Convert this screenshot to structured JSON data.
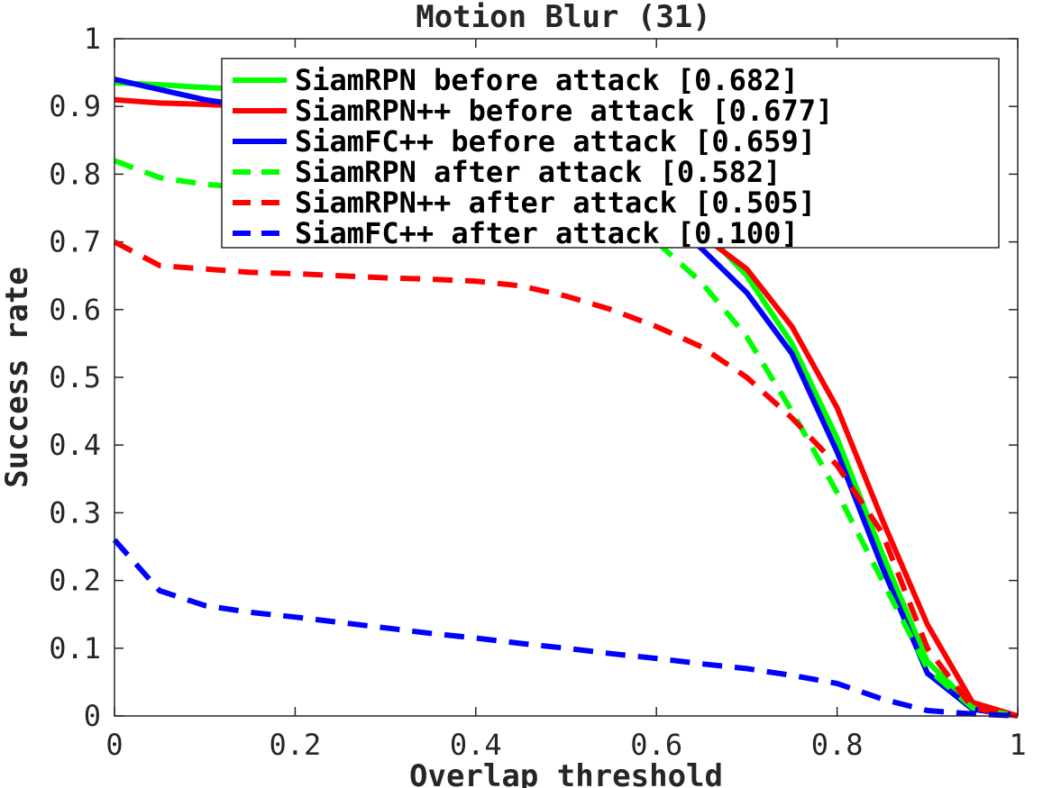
{
  "chart_data": {
    "type": "line",
    "title": "Motion Blur (31)",
    "xlabel": "Overlap threshold",
    "ylabel": "Success rate",
    "xlim": [
      0,
      1
    ],
    "ylim": [
      0,
      1
    ],
    "xticks": [
      "0",
      "0.2",
      "0.4",
      "0.6",
      "0.8",
      "1"
    ],
    "yticks": [
      "0",
      "0.1",
      "0.2",
      "0.3",
      "0.4",
      "0.5",
      "0.6",
      "0.7",
      "0.8",
      "0.9",
      "1"
    ],
    "legend_position": "top-right",
    "x": [
      0,
      0.05,
      0.1,
      0.15,
      0.2,
      0.25,
      0.3,
      0.35,
      0.4,
      0.45,
      0.5,
      0.55,
      0.6,
      0.65,
      0.7,
      0.75,
      0.8,
      0.85,
      0.9,
      0.95,
      1.0
    ],
    "series": [
      {
        "name": "SiamRPN before attack [0.682]",
        "color": "#00ff00",
        "style": "solid",
        "values": [
          0.935,
          0.932,
          0.928,
          0.925,
          0.92,
          0.915,
          0.91,
          0.905,
          0.9,
          0.89,
          0.87,
          0.83,
          0.78,
          0.72,
          0.65,
          0.55,
          0.41,
          0.24,
          0.08,
          0.015,
          0.0
        ]
      },
      {
        "name": "SiamRPN++ before attack [0.677]",
        "color": "#ff0000",
        "style": "solid",
        "values": [
          0.91,
          0.905,
          0.903,
          0.9,
          0.895,
          0.89,
          0.885,
          0.88,
          0.87,
          0.86,
          0.84,
          0.8,
          0.76,
          0.71,
          0.66,
          0.575,
          0.455,
          0.29,
          0.135,
          0.02,
          0.0
        ]
      },
      {
        "name": "SiamFC++ before attack [0.659]",
        "color": "#0000ff",
        "style": "solid",
        "values": [
          0.94,
          0.925,
          0.91,
          0.9,
          0.89,
          0.88,
          0.87,
          0.86,
          0.85,
          0.84,
          0.82,
          0.79,
          0.75,
          0.69,
          0.625,
          0.535,
          0.39,
          0.22,
          0.063,
          0.01,
          0.0
        ]
      },
      {
        "name": "SiamRPN after attack [0.582]",
        "color": "#00ff00",
        "style": "dashed",
        "values": [
          0.82,
          0.795,
          0.785,
          0.78,
          0.775,
          0.77,
          0.765,
          0.76,
          0.755,
          0.75,
          0.74,
          0.72,
          0.7,
          0.64,
          0.56,
          0.45,
          0.33,
          0.2,
          0.07,
          0.012,
          0.0
        ]
      },
      {
        "name": "SiamRPN++ after attack [0.505]",
        "color": "#ff0000",
        "style": "dashed",
        "values": [
          0.7,
          0.665,
          0.66,
          0.655,
          0.653,
          0.65,
          0.647,
          0.645,
          0.642,
          0.635,
          0.62,
          0.6,
          0.575,
          0.545,
          0.5,
          0.44,
          0.37,
          0.27,
          0.1,
          0.012,
          0.0
        ]
      },
      {
        "name": "SiamFC++ after attack [0.100]",
        "color": "#0000ff",
        "style": "dashed",
        "values": [
          0.26,
          0.185,
          0.163,
          0.153,
          0.146,
          0.138,
          0.13,
          0.122,
          0.115,
          0.107,
          0.1,
          0.092,
          0.085,
          0.077,
          0.07,
          0.06,
          0.048,
          0.025,
          0.008,
          0.003,
          0.0
        ]
      }
    ]
  }
}
